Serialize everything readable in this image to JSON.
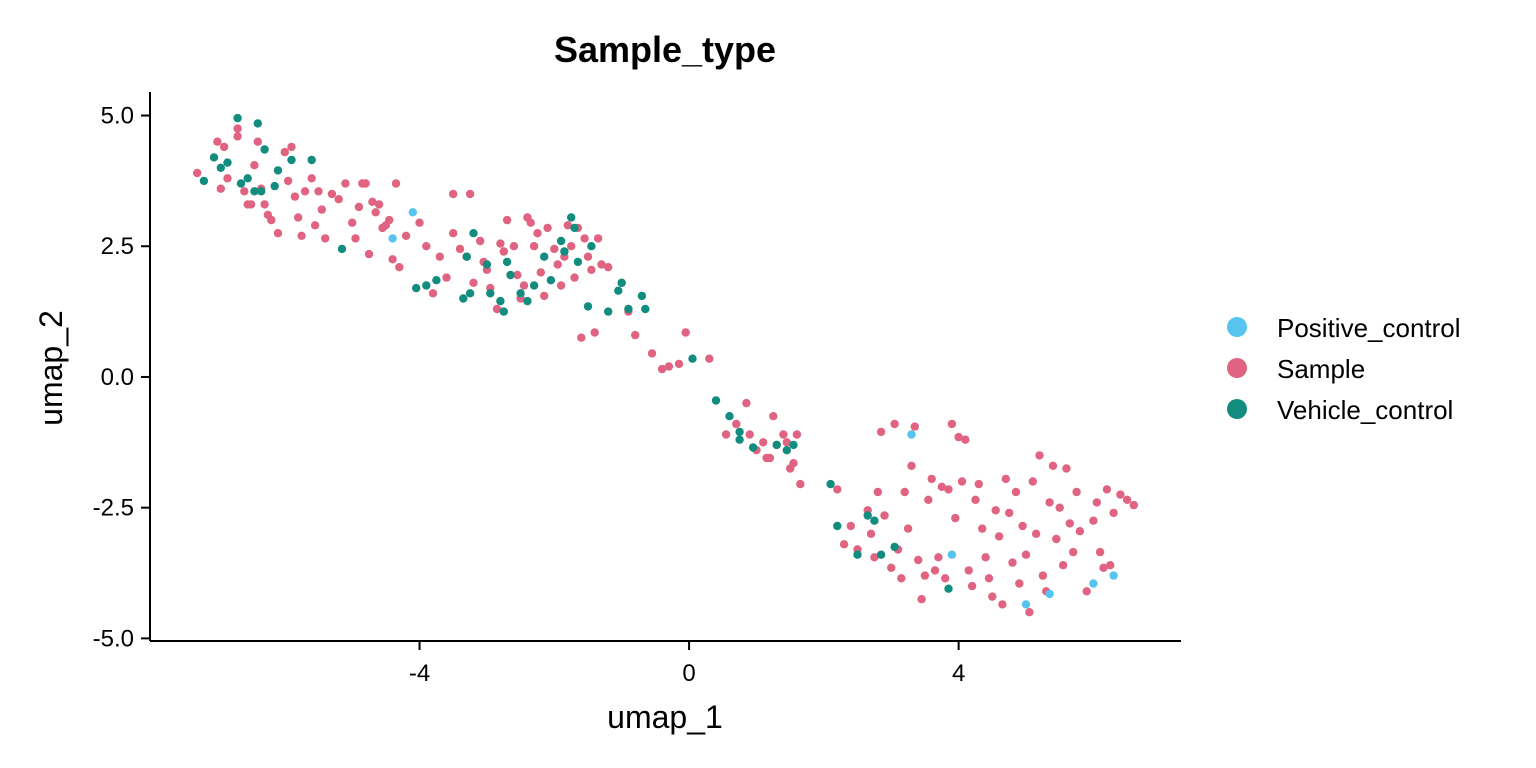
{
  "chart_data": {
    "type": "scatter",
    "title": "Sample_type",
    "xlabel": "umap_1",
    "ylabel": "umap_2",
    "xlim": [
      -8.0,
      7.3
    ],
    "ylim": [
      -5.05,
      5.45
    ],
    "x_ticks": [
      -4,
      0,
      4
    ],
    "x_tick_labels": [
      "-4",
      "0",
      "4"
    ],
    "y_ticks": [
      5,
      2.5,
      0,
      -2.5,
      -5
    ],
    "y_tick_labels": [
      "5.0",
      "2.5",
      "0.0",
      "-2.5",
      "-5.0"
    ],
    "grid": false,
    "legend_position": "right",
    "series": [
      {
        "name": "Positive_control",
        "color": "#56C4EE",
        "points": [
          [
            -4.1,
            3.15
          ],
          [
            -4.4,
            2.65
          ],
          [
            3.3,
            -1.1
          ],
          [
            3.9,
            -3.4
          ],
          [
            5.0,
            -4.35
          ],
          [
            5.35,
            -4.15
          ],
          [
            6.0,
            -3.95
          ],
          [
            6.3,
            -3.8
          ]
        ]
      },
      {
        "name": "Sample",
        "color": "#E06381",
        "points": [
          [
            -7.3,
            3.9
          ],
          [
            -7.0,
            4.5
          ],
          [
            -6.9,
            4.4
          ],
          [
            -6.95,
            3.6
          ],
          [
            -6.85,
            3.8
          ],
          [
            -6.7,
            4.75
          ],
          [
            -6.7,
            4.6
          ],
          [
            -6.6,
            3.55
          ],
          [
            -6.55,
            3.3
          ],
          [
            -6.5,
            3.3
          ],
          [
            -6.45,
            4.05
          ],
          [
            -6.4,
            4.5
          ],
          [
            -6.35,
            3.6
          ],
          [
            -6.3,
            3.3
          ],
          [
            -6.25,
            3.1
          ],
          [
            -6.2,
            3.0
          ],
          [
            -6.1,
            2.75
          ],
          [
            -6.0,
            4.3
          ],
          [
            -5.95,
            3.75
          ],
          [
            -5.9,
            4.4
          ],
          [
            -5.85,
            3.45
          ],
          [
            -5.8,
            3.05
          ],
          [
            -5.75,
            2.7
          ],
          [
            -5.7,
            3.55
          ],
          [
            -5.6,
            3.8
          ],
          [
            -5.55,
            2.9
          ],
          [
            -5.5,
            3.55
          ],
          [
            -5.45,
            3.2
          ],
          [
            -5.4,
            2.65
          ],
          [
            -5.3,
            3.5
          ],
          [
            -5.2,
            3.4
          ],
          [
            -5.1,
            3.7
          ],
          [
            -5.0,
            2.95
          ],
          [
            -4.95,
            2.65
          ],
          [
            -4.9,
            3.25
          ],
          [
            -4.85,
            3.7
          ],
          [
            -4.8,
            3.7
          ],
          [
            -4.75,
            2.35
          ],
          [
            -4.7,
            3.35
          ],
          [
            -4.65,
            3.15
          ],
          [
            -4.6,
            3.3
          ],
          [
            -4.55,
            2.85
          ],
          [
            -4.5,
            2.9
          ],
          [
            -4.45,
            3.0
          ],
          [
            -4.4,
            2.25
          ],
          [
            -4.35,
            3.7
          ],
          [
            -4.3,
            2.1
          ],
          [
            -4.2,
            2.7
          ],
          [
            -4.0,
            2.95
          ],
          [
            -3.9,
            2.5
          ],
          [
            -3.8,
            1.6
          ],
          [
            -3.7,
            2.3
          ],
          [
            -3.6,
            1.9
          ],
          [
            -3.5,
            3.5
          ],
          [
            -3.5,
            2.75
          ],
          [
            -3.4,
            2.45
          ],
          [
            -3.3,
            2.3
          ],
          [
            -3.25,
            3.5
          ],
          [
            -3.2,
            1.8
          ],
          [
            -3.1,
            2.6
          ],
          [
            -3.05,
            2.2
          ],
          [
            -3.0,
            2.05
          ],
          [
            -2.95,
            1.7
          ],
          [
            -2.85,
            1.3
          ],
          [
            -2.8,
            2.55
          ],
          [
            -2.75,
            2.4
          ],
          [
            -2.7,
            3.0
          ],
          [
            -2.6,
            2.5
          ],
          [
            -2.55,
            1.95
          ],
          [
            -2.5,
            1.5
          ],
          [
            -2.45,
            1.75
          ],
          [
            -2.4,
            3.05
          ],
          [
            -2.35,
            2.95
          ],
          [
            -2.3,
            2.5
          ],
          [
            -2.25,
            2.75
          ],
          [
            -2.2,
            2.0
          ],
          [
            -2.15,
            1.55
          ],
          [
            -2.1,
            2.85
          ],
          [
            -2.0,
            2.45
          ],
          [
            -1.95,
            2.15
          ],
          [
            -1.9,
            1.75
          ],
          [
            -1.85,
            2.3
          ],
          [
            -1.8,
            2.9
          ],
          [
            -1.75,
            2.5
          ],
          [
            -1.7,
            1.9
          ],
          [
            -1.65,
            2.85
          ],
          [
            -1.6,
            0.75
          ],
          [
            -1.55,
            2.65
          ],
          [
            -1.5,
            2.3
          ],
          [
            -1.45,
            2.05
          ],
          [
            -1.4,
            0.85
          ],
          [
            -1.35,
            2.65
          ],
          [
            -1.3,
            2.15
          ],
          [
            -1.2,
            2.1
          ],
          [
            -1.0,
            1.8
          ],
          [
            -0.9,
            1.25
          ],
          [
            -0.8,
            0.8
          ],
          [
            -0.55,
            0.45
          ],
          [
            -0.4,
            0.15
          ],
          [
            -0.3,
            0.2
          ],
          [
            -0.15,
            0.25
          ],
          [
            -0.05,
            0.85
          ],
          [
            0.3,
            0.35
          ],
          [
            0.55,
            -1.1
          ],
          [
            0.7,
            -0.9
          ],
          [
            0.85,
            -0.5
          ],
          [
            0.9,
            -1.1
          ],
          [
            1.0,
            -1.4
          ],
          [
            1.1,
            -1.25
          ],
          [
            1.15,
            -1.55
          ],
          [
            1.2,
            -1.55
          ],
          [
            1.25,
            -0.75
          ],
          [
            1.3,
            -1.3
          ],
          [
            1.4,
            -1.1
          ],
          [
            1.45,
            -1.25
          ],
          [
            1.5,
            -1.75
          ],
          [
            1.55,
            -1.65
          ],
          [
            1.6,
            -1.1
          ],
          [
            1.65,
            -2.05
          ],
          [
            2.2,
            -2.15
          ],
          [
            2.3,
            -3.2
          ],
          [
            2.4,
            -2.85
          ],
          [
            2.5,
            -3.3
          ],
          [
            2.65,
            -2.55
          ],
          [
            2.7,
            -3.0
          ],
          [
            2.75,
            -3.45
          ],
          [
            2.8,
            -2.2
          ],
          [
            2.85,
            -1.05
          ],
          [
            2.9,
            -2.65
          ],
          [
            3.0,
            -3.65
          ],
          [
            3.05,
            -0.9
          ],
          [
            3.1,
            -3.3
          ],
          [
            3.15,
            -3.85
          ],
          [
            3.2,
            -2.2
          ],
          [
            3.25,
            -2.9
          ],
          [
            3.3,
            -1.7
          ],
          [
            3.35,
            -0.95
          ],
          [
            3.4,
            -3.5
          ],
          [
            3.45,
            -4.25
          ],
          [
            3.5,
            -3.8
          ],
          [
            3.55,
            -2.35
          ],
          [
            3.6,
            -1.95
          ],
          [
            3.65,
            -3.7
          ],
          [
            3.7,
            -3.45
          ],
          [
            3.75,
            -2.1
          ],
          [
            3.8,
            -3.85
          ],
          [
            3.85,
            -2.15
          ],
          [
            3.9,
            -0.9
          ],
          [
            3.95,
            -2.7
          ],
          [
            4.0,
            -1.15
          ],
          [
            4.05,
            -2.0
          ],
          [
            4.1,
            -1.2
          ],
          [
            4.15,
            -3.7
          ],
          [
            4.2,
            -4.0
          ],
          [
            4.25,
            -2.35
          ],
          [
            4.3,
            -2.05
          ],
          [
            4.35,
            -2.9
          ],
          [
            4.4,
            -3.45
          ],
          [
            4.45,
            -3.85
          ],
          [
            4.5,
            -4.2
          ],
          [
            4.55,
            -2.55
          ],
          [
            4.6,
            -3.05
          ],
          [
            4.65,
            -4.35
          ],
          [
            4.7,
            -1.95
          ],
          [
            4.75,
            -2.6
          ],
          [
            4.8,
            -3.55
          ],
          [
            4.85,
            -2.2
          ],
          [
            4.9,
            -3.95
          ],
          [
            4.95,
            -2.85
          ],
          [
            5.0,
            -3.4
          ],
          [
            5.05,
            -4.5
          ],
          [
            5.1,
            -2.0
          ],
          [
            5.15,
            -3.0
          ],
          [
            5.2,
            -1.5
          ],
          [
            5.25,
            -3.8
          ],
          [
            5.3,
            -4.1
          ],
          [
            5.35,
            -2.4
          ],
          [
            5.4,
            -1.7
          ],
          [
            5.45,
            -3.1
          ],
          [
            5.5,
            -2.5
          ],
          [
            5.55,
            -3.6
          ],
          [
            5.6,
            -1.75
          ],
          [
            5.65,
            -2.8
          ],
          [
            5.7,
            -3.35
          ],
          [
            5.75,
            -2.2
          ],
          [
            5.8,
            -2.95
          ],
          [
            5.9,
            -4.1
          ],
          [
            6.0,
            -2.75
          ],
          [
            6.05,
            -2.4
          ],
          [
            6.1,
            -3.35
          ],
          [
            6.15,
            -3.65
          ],
          [
            6.2,
            -2.15
          ],
          [
            6.25,
            -3.6
          ],
          [
            6.3,
            -2.6
          ],
          [
            6.4,
            -2.25
          ],
          [
            6.5,
            -2.35
          ],
          [
            6.6,
            -2.45
          ]
        ]
      },
      {
        "name": "Vehicle_control",
        "color": "#118C7F",
        "points": [
          [
            -7.2,
            3.75
          ],
          [
            -7.05,
            4.2
          ],
          [
            -6.95,
            4.0
          ],
          [
            -6.85,
            4.1
          ],
          [
            -6.7,
            4.95
          ],
          [
            -6.65,
            3.7
          ],
          [
            -6.55,
            3.8
          ],
          [
            -6.45,
            3.55
          ],
          [
            -6.4,
            4.85
          ],
          [
            -6.35,
            3.55
          ],
          [
            -6.3,
            4.35
          ],
          [
            -6.15,
            3.65
          ],
          [
            -6.1,
            3.95
          ],
          [
            -5.9,
            4.15
          ],
          [
            -5.6,
            4.15
          ],
          [
            -5.15,
            2.45
          ],
          [
            -4.05,
            1.7
          ],
          [
            -3.9,
            1.75
          ],
          [
            -3.75,
            1.85
          ],
          [
            -3.35,
            1.5
          ],
          [
            -3.3,
            2.3
          ],
          [
            -3.25,
            1.6
          ],
          [
            -3.2,
            2.75
          ],
          [
            -3.0,
            2.15
          ],
          [
            -2.95,
            1.6
          ],
          [
            -2.8,
            1.45
          ],
          [
            -2.75,
            1.25
          ],
          [
            -2.7,
            2.2
          ],
          [
            -2.65,
            1.95
          ],
          [
            -2.5,
            1.6
          ],
          [
            -2.4,
            1.45
          ],
          [
            -2.3,
            1.75
          ],
          [
            -2.15,
            2.3
          ],
          [
            -2.05,
            1.85
          ],
          [
            -1.9,
            2.6
          ],
          [
            -1.85,
            2.4
          ],
          [
            -1.75,
            3.05
          ],
          [
            -1.7,
            2.85
          ],
          [
            -1.65,
            2.2
          ],
          [
            -1.5,
            1.35
          ],
          [
            -1.45,
            2.5
          ],
          [
            -1.2,
            1.25
          ],
          [
            -1.05,
            1.65
          ],
          [
            -1.0,
            1.8
          ],
          [
            -0.9,
            1.3
          ],
          [
            -0.7,
            1.55
          ],
          [
            -0.65,
            1.3
          ],
          [
            0.05,
            0.35
          ],
          [
            0.4,
            -0.45
          ],
          [
            0.6,
            -0.75
          ],
          [
            0.75,
            -1.2
          ],
          [
            0.75,
            -1.05
          ],
          [
            0.95,
            -1.35
          ],
          [
            1.3,
            -1.3
          ],
          [
            1.45,
            -1.4
          ],
          [
            1.55,
            -1.3
          ],
          [
            2.1,
            -2.05
          ],
          [
            2.2,
            -2.85
          ],
          [
            2.5,
            -3.4
          ],
          [
            2.65,
            -2.65
          ],
          [
            2.75,
            -2.75
          ],
          [
            2.85,
            -3.4
          ],
          [
            3.05,
            -3.25
          ],
          [
            3.85,
            -4.05
          ]
        ]
      }
    ]
  }
}
